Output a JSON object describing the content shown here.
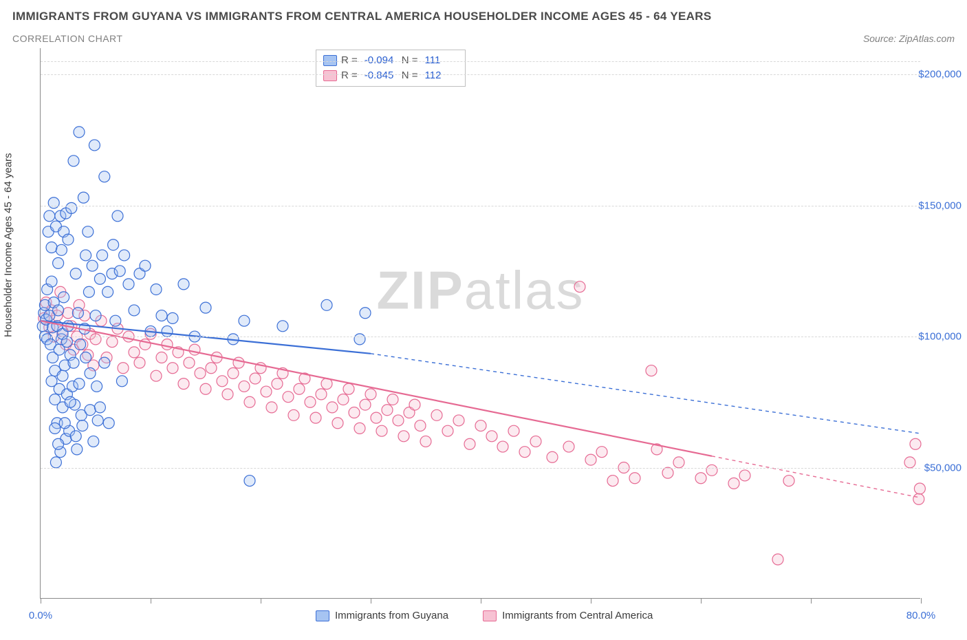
{
  "title": "IMMIGRANTS FROM GUYANA VS IMMIGRANTS FROM CENTRAL AMERICA HOUSEHOLDER INCOME AGES 45 - 64 YEARS",
  "subtitle": "CORRELATION CHART",
  "source_label": "Source: ",
  "source_name": "ZipAtlas.com",
  "watermark_bold": "ZIP",
  "watermark_thin": "atlas",
  "chart": {
    "type": "scatter",
    "xlim": [
      0,
      80
    ],
    "ylim": [
      0,
      210000
    ],
    "x_axis_label": "",
    "y_axis_label": "Householder Income Ages 45 - 64 years",
    "background_color": "#ffffff",
    "grid_color": "#d8d8d8",
    "axis_color": "#8a8a8a",
    "tick_label_color": "#3b6fd6",
    "tick_fontsize": 15,
    "axis_label_fontsize": 15,
    "y_gridlines_at": [
      50000,
      100000,
      150000,
      200000
    ],
    "y_tick_labels": [
      "$50,000",
      "$100,000",
      "$150,000",
      "$200,000"
    ],
    "x_ticks_at": [
      0,
      10,
      20,
      30,
      40,
      50,
      60,
      70,
      80
    ],
    "x_tick_labels": {
      "0": "0.0%",
      "80": "80.0%"
    },
    "marker_radius": 8,
    "marker_fill_opacity": 0.35,
    "marker_stroke_width": 1.2,
    "line_width_solid": 2.2,
    "line_width_dash": 1.4,
    "dash_pattern": "5,5"
  },
  "series": {
    "guyana": {
      "label": "Immigrants from Guyana",
      "color_stroke": "#3b6fd6",
      "color_fill": "#a6c4f2",
      "R": "-0.094",
      "N": "111",
      "trend_solid": {
        "x1": 0,
        "y1": 106000,
        "x2": 30,
        "y2": 93500
      },
      "trend_dash": {
        "x1": 30,
        "y1": 93500,
        "x2": 80,
        "y2": 63000
      },
      "points": [
        [
          0.2,
          104000
        ],
        [
          0.3,
          109000
        ],
        [
          0.4,
          100000
        ],
        [
          0.4,
          112000
        ],
        [
          0.5,
          106500
        ],
        [
          0.6,
          99000
        ],
        [
          0.6,
          118000
        ],
        [
          0.7,
          140000
        ],
        [
          0.8,
          146000
        ],
        [
          0.8,
          108000
        ],
        [
          0.9,
          97000
        ],
        [
          1.0,
          134000
        ],
        [
          1.0,
          121000
        ],
        [
          1.1,
          103500
        ],
        [
          1.1,
          92000
        ],
        [
          1.2,
          151000
        ],
        [
          1.2,
          113000
        ],
        [
          1.3,
          87000
        ],
        [
          1.3,
          76000
        ],
        [
          1.4,
          142000
        ],
        [
          1.4,
          52000
        ],
        [
          1.5,
          104000
        ],
        [
          1.5,
          67000
        ],
        [
          1.6,
          128000
        ],
        [
          1.6,
          110000
        ],
        [
          1.7,
          95000
        ],
        [
          1.7,
          80000
        ],
        [
          1.8,
          146000
        ],
        [
          1.8,
          56000
        ],
        [
          1.9,
          99000
        ],
        [
          1.9,
          133000
        ],
        [
          2.0,
          101000
        ],
        [
          2.0,
          73000
        ],
        [
          2.1,
          140000
        ],
        [
          2.1,
          115000
        ],
        [
          2.2,
          89000
        ],
        [
          2.3,
          147000
        ],
        [
          2.3,
          61000
        ],
        [
          2.4,
          78000
        ],
        [
          2.5,
          104000
        ],
        [
          2.5,
          137000
        ],
        [
          2.6,
          64000
        ],
        [
          2.7,
          93000
        ],
        [
          2.8,
          149000
        ],
        [
          2.9,
          81000
        ],
        [
          3.0,
          167000
        ],
        [
          3.1,
          74000
        ],
        [
          3.2,
          124000
        ],
        [
          3.3,
          57000
        ],
        [
          3.4,
          109000
        ],
        [
          3.5,
          178000
        ],
        [
          3.6,
          97000
        ],
        [
          3.7,
          70000
        ],
        [
          3.9,
          153000
        ],
        [
          4.0,
          103000
        ],
        [
          4.1,
          131000
        ],
        [
          4.3,
          140000
        ],
        [
          4.4,
          117000
        ],
        [
          4.5,
          86000
        ],
        [
          4.7,
          127000
        ],
        [
          4.9,
          173000
        ],
        [
          5.0,
          108000
        ],
        [
          5.2,
          68000
        ],
        [
          5.4,
          122000
        ],
        [
          5.6,
          131000
        ],
        [
          5.8,
          161000
        ],
        [
          6.1,
          117000
        ],
        [
          6.5,
          124000
        ],
        [
          6.6,
          135000
        ],
        [
          6.8,
          106000
        ],
        [
          7.0,
          146000
        ],
        [
          7.2,
          125000
        ],
        [
          7.4,
          83000
        ],
        [
          7.6,
          131000
        ],
        [
          8.0,
          120000
        ],
        [
          8.5,
          110000
        ],
        [
          9.0,
          124000
        ],
        [
          9.5,
          127000
        ],
        [
          10.0,
          102000
        ],
        [
          10.5,
          118000
        ],
        [
          11.0,
          108000
        ],
        [
          11.5,
          102000
        ],
        [
          12.0,
          107000
        ],
        [
          13.0,
          120000
        ],
        [
          14.0,
          100000
        ],
        [
          15.0,
          111000
        ],
        [
          17.5,
          99000
        ],
        [
          18.5,
          106000
        ],
        [
          19.0,
          45000
        ],
        [
          22.0,
          104000
        ],
        [
          26.0,
          112000
        ],
        [
          29.0,
          99000
        ],
        [
          29.5,
          109000
        ],
        [
          1.0,
          83000
        ],
        [
          1.3,
          65000
        ],
        [
          1.6,
          59000
        ],
        [
          2.0,
          85000
        ],
        [
          2.2,
          67000
        ],
        [
          2.4,
          98000
        ],
        [
          2.7,
          75000
        ],
        [
          3.0,
          90000
        ],
        [
          3.2,
          62000
        ],
        [
          3.5,
          82000
        ],
        [
          3.8,
          66000
        ],
        [
          4.1,
          92000
        ],
        [
          4.5,
          72000
        ],
        [
          4.8,
          60000
        ],
        [
          5.1,
          81000
        ],
        [
          5.4,
          73000
        ],
        [
          5.8,
          90000
        ],
        [
          6.2,
          67000
        ]
      ]
    },
    "central_america": {
      "label": "Immigrants from Central America",
      "color_stroke": "#e66a93",
      "color_fill": "#f7c2d3",
      "R": "-0.845",
      "N": "112",
      "trend_solid": {
        "x1": 0,
        "y1": 106000,
        "x2": 61,
        "y2": 54400
      },
      "trend_dash": {
        "x1": 61,
        "y1": 54400,
        "x2": 80,
        "y2": 38500
      },
      "points": [
        [
          0.3,
          107000
        ],
        [
          0.5,
          113000
        ],
        [
          0.8,
          103500
        ],
        [
          1.0,
          110000
        ],
        [
          1.2,
          100000
        ],
        [
          1.5,
          108000
        ],
        [
          1.8,
          117000
        ],
        [
          2.0,
          102000
        ],
        [
          2.3,
          97000
        ],
        [
          2.5,
          109000
        ],
        [
          2.8,
          104000
        ],
        [
          3.0,
          95000
        ],
        [
          3.3,
          100000
        ],
        [
          3.5,
          112000
        ],
        [
          3.8,
          97000
        ],
        [
          4.0,
          108000
        ],
        [
          4.3,
          93000
        ],
        [
          4.5,
          101000
        ],
        [
          4.8,
          89000
        ],
        [
          5.0,
          99000
        ],
        [
          5.5,
          106000
        ],
        [
          6.0,
          92000
        ],
        [
          6.5,
          98000
        ],
        [
          7.0,
          103000
        ],
        [
          7.5,
          88000
        ],
        [
          8.0,
          100000
        ],
        [
          8.5,
          94000
        ],
        [
          9.0,
          90000
        ],
        [
          9.5,
          97000
        ],
        [
          10.0,
          101000
        ],
        [
          10.5,
          85000
        ],
        [
          11.0,
          92000
        ],
        [
          11.5,
          97000
        ],
        [
          12.0,
          88000
        ],
        [
          12.5,
          94000
        ],
        [
          13.0,
          82000
        ],
        [
          13.5,
          90000
        ],
        [
          14.0,
          95000
        ],
        [
          14.5,
          86000
        ],
        [
          15.0,
          80000
        ],
        [
          15.5,
          88000
        ],
        [
          16.0,
          92000
        ],
        [
          16.5,
          83000
        ],
        [
          17.0,
          78000
        ],
        [
          17.5,
          86000
        ],
        [
          18.0,
          90000
        ],
        [
          18.5,
          81000
        ],
        [
          19.0,
          75000
        ],
        [
          19.5,
          84000
        ],
        [
          20.0,
          88000
        ],
        [
          20.5,
          79000
        ],
        [
          21.0,
          73000
        ],
        [
          21.5,
          82000
        ],
        [
          22.0,
          86000
        ],
        [
          22.5,
          77000
        ],
        [
          23.0,
          70000
        ],
        [
          23.5,
          80000
        ],
        [
          24.0,
          84000
        ],
        [
          24.5,
          75000
        ],
        [
          25.0,
          69000
        ],
        [
          25.5,
          78000
        ],
        [
          26.0,
          82000
        ],
        [
          26.5,
          73000
        ],
        [
          27.0,
          67000
        ],
        [
          27.5,
          76000
        ],
        [
          28.0,
          80000
        ],
        [
          28.5,
          71000
        ],
        [
          29.0,
          65000
        ],
        [
          29.5,
          74000
        ],
        [
          30.0,
          78000
        ],
        [
          30.5,
          69000
        ],
        [
          31.0,
          64000
        ],
        [
          31.5,
          72000
        ],
        [
          32.0,
          76000
        ],
        [
          32.5,
          68000
        ],
        [
          33.0,
          62000
        ],
        [
          33.5,
          71000
        ],
        [
          34.0,
          74000
        ],
        [
          34.5,
          66000
        ],
        [
          35.0,
          60000
        ],
        [
          36.0,
          70000
        ],
        [
          37.0,
          64000
        ],
        [
          38.0,
          68000
        ],
        [
          39.0,
          59000
        ],
        [
          40.0,
          66000
        ],
        [
          41.0,
          62000
        ],
        [
          42.0,
          58000
        ],
        [
          43.0,
          64000
        ],
        [
          44.0,
          56000
        ],
        [
          45.0,
          60000
        ],
        [
          46.5,
          54000
        ],
        [
          48.0,
          58000
        ],
        [
          49.0,
          119000
        ],
        [
          50.0,
          53000
        ],
        [
          51.0,
          56000
        ],
        [
          52.0,
          45000
        ],
        [
          53.0,
          50000
        ],
        [
          54.0,
          46000
        ],
        [
          55.5,
          87000
        ],
        [
          56.0,
          57000
        ],
        [
          57.0,
          48000
        ],
        [
          58.0,
          52000
        ],
        [
          60.0,
          46000
        ],
        [
          61.0,
          49000
        ],
        [
          63.0,
          44000
        ],
        [
          64.0,
          47000
        ],
        [
          67.0,
          15000
        ],
        [
          68.0,
          45000
        ],
        [
          79.0,
          52000
        ],
        [
          79.5,
          59000
        ],
        [
          79.8,
          38000
        ],
        [
          79.9,
          42000
        ]
      ]
    }
  },
  "legend_top": {
    "R_label": "R =",
    "N_label": "N ="
  }
}
